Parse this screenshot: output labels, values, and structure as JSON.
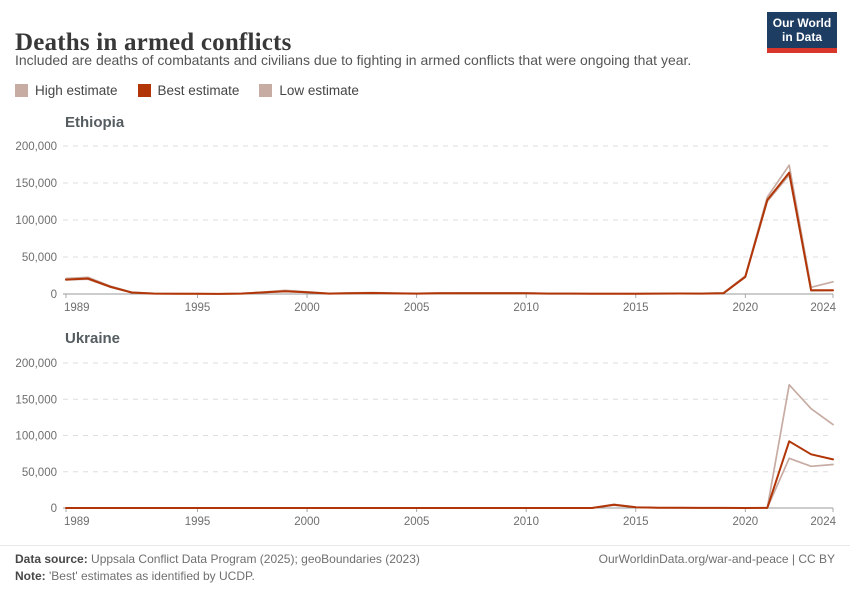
{
  "header": {
    "title": "Deaths in armed conflicts",
    "subtitle": "Included are deaths of combatants and civilians due to fighting in armed conflicts that were ongoing that year.",
    "logo": {
      "line1": "Our World",
      "line2": "in Data",
      "bg_color": "#1d3d63",
      "stripe_color": "#d8352b"
    }
  },
  "legend": [
    {
      "label": "High estimate",
      "color": "#c7aca3"
    },
    {
      "label": "Best estimate",
      "color": "#b13507"
    },
    {
      "label": "Low estimate",
      "color": "#c7aca3"
    }
  ],
  "chart_data": [
    {
      "type": "line",
      "title": "Ethiopia",
      "x": [
        1989,
        1990,
        1991,
        1992,
        1993,
        1994,
        1995,
        1996,
        1997,
        1998,
        1999,
        2000,
        2001,
        2002,
        2003,
        2004,
        2005,
        2006,
        2007,
        2008,
        2009,
        2010,
        2011,
        2012,
        2013,
        2014,
        2015,
        2016,
        2017,
        2018,
        2019,
        2020,
        2021,
        2022,
        2023,
        2024
      ],
      "series": [
        {
          "name": "High estimate",
          "color": "#c7aca3",
          "values": [
            21000,
            22500,
            11000,
            2500,
            800,
            500,
            400,
            300,
            900,
            2600,
            4800,
            3000,
            800,
            1500,
            1900,
            1200,
            900,
            1300,
            1600,
            1500,
            1600,
            1300,
            800,
            800,
            600,
            600,
            500,
            900,
            1000,
            800,
            1500,
            24500,
            131000,
            174000,
            9000,
            16500
          ]
        },
        {
          "name": "Best estimate",
          "color": "#b13507",
          "values": [
            19500,
            21000,
            10000,
            2000,
            500,
            300,
            250,
            200,
            600,
            2100,
            3800,
            2400,
            500,
            1000,
            1300,
            800,
            600,
            900,
            1100,
            1000,
            1100,
            900,
            500,
            500,
            400,
            400,
            300,
            600,
            700,
            500,
            1000,
            23300,
            127000,
            164000,
            5000,
            5200
          ]
        },
        {
          "name": "Low estimate",
          "color": "#c7aca3",
          "values": [
            19000,
            20000,
            9500,
            1800,
            400,
            250,
            200,
            150,
            500,
            1900,
            3400,
            2100,
            400,
            900,
            1100,
            700,
            500,
            800,
            1000,
            900,
            1000,
            800,
            450,
            450,
            350,
            350,
            250,
            500,
            600,
            450,
            900,
            22500,
            125000,
            161000,
            4300,
            4600
          ]
        }
      ],
      "ylim": [
        0,
        200000
      ],
      "yticks": [
        0,
        50000,
        100000,
        150000,
        200000
      ],
      "xticks": [
        1989,
        1995,
        2000,
        2005,
        2010,
        2015,
        2020,
        2024
      ],
      "grid": true,
      "legend_position": "top"
    },
    {
      "type": "line",
      "title": "Ukraine",
      "x": [
        1989,
        1990,
        1991,
        1992,
        1993,
        1994,
        1995,
        1996,
        1997,
        1998,
        1999,
        2000,
        2001,
        2002,
        2003,
        2004,
        2005,
        2006,
        2007,
        2008,
        2009,
        2010,
        2011,
        2012,
        2013,
        2014,
        2015,
        2016,
        2017,
        2018,
        2019,
        2020,
        2021,
        2022,
        2023,
        2024
      ],
      "series": [
        {
          "name": "High estimate",
          "color": "#c7aca3",
          "values": [
            0,
            0,
            0,
            0,
            0,
            0,
            0,
            0,
            0,
            0,
            0,
            0,
            0,
            0,
            0,
            0,
            0,
            0,
            0,
            0,
            0,
            0,
            0,
            0,
            0,
            5000,
            1200,
            350,
            300,
            150,
            140,
            60,
            120,
            170000,
            137000,
            115000
          ]
        },
        {
          "name": "Best estimate",
          "color": "#b13507",
          "values": [
            0,
            0,
            0,
            0,
            0,
            0,
            0,
            0,
            0,
            0,
            0,
            0,
            0,
            0,
            0,
            0,
            0,
            0,
            0,
            0,
            0,
            0,
            0,
            0,
            0,
            4400,
            1000,
            300,
            250,
            130,
            120,
            50,
            100,
            92000,
            74000,
            67000
          ]
        },
        {
          "name": "Low estimate",
          "color": "#c7aca3",
          "values": [
            0,
            0,
            0,
            0,
            0,
            0,
            0,
            0,
            0,
            0,
            0,
            0,
            0,
            0,
            0,
            0,
            0,
            0,
            0,
            0,
            0,
            0,
            0,
            0,
            0,
            4000,
            900,
            250,
            200,
            110,
            100,
            40,
            90,
            68500,
            57500,
            60000
          ]
        }
      ],
      "ylim": [
        0,
        200000
      ],
      "yticks": [
        0,
        50000,
        100000,
        150000,
        200000
      ],
      "xticks": [
        1989,
        1995,
        2000,
        2005,
        2010,
        2015,
        2020,
        2024
      ],
      "grid": true,
      "legend_position": "top"
    }
  ],
  "footer": {
    "source_label": "Data source:",
    "source_text": "Uppsala Conflict Data Program (2025); geoBoundaries (2023)",
    "credit": "OurWorldinData.org/war-and-peace | CC BY",
    "note_label": "Note:",
    "note_text": "'Best' estimates as identified by UCDP."
  }
}
